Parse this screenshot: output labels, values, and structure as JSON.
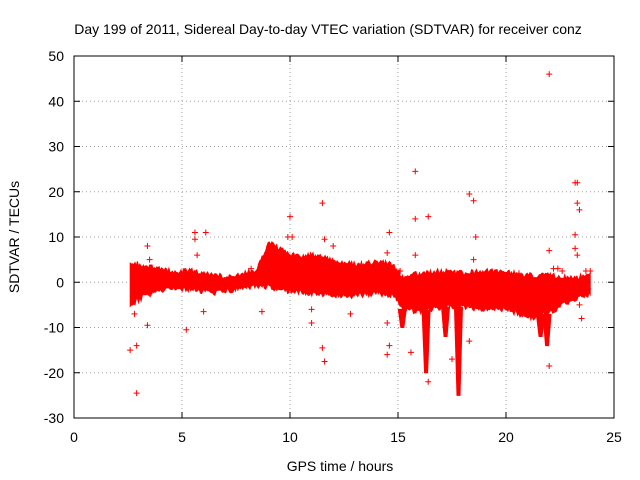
{
  "chart_data": {
    "type": "scatter",
    "title": "Day 199 of 2011, Sidereal Day-to-day VTEC variation (SDTVAR) for receiver conz",
    "xlabel": "GPS time / hours",
    "ylabel": "SDTVAR / TECUs",
    "xlim": [
      0,
      25
    ],
    "ylim": [
      -30,
      50
    ],
    "xticks": [
      0,
      5,
      10,
      15,
      20,
      25
    ],
    "yticks": [
      -30,
      -20,
      -10,
      0,
      10,
      20,
      30,
      40,
      50
    ],
    "xtick_labels": [
      "0",
      "5",
      "10",
      "15",
      "20",
      "25"
    ],
    "ytick_labels": [
      "-30",
      "-20",
      "-10",
      "0",
      "10",
      "20",
      "30",
      "40",
      "50"
    ],
    "grid": true,
    "marker": "+",
    "color": "#ff0000",
    "band": {
      "x": [
        2.6,
        3.5,
        4.5,
        5.5,
        6.5,
        7.5,
        8.5,
        9.0,
        10.0,
        11.0,
        12.0,
        13.0,
        14.0,
        14.8,
        15.2,
        16.0,
        17.0,
        18.0,
        19.0,
        20.0,
        21.0,
        22.0,
        23.0,
        23.9
      ],
      "low": [
        -5.0,
        -2.5,
        -1.5,
        -1.5,
        -2.5,
        -1.5,
        -1.0,
        -1.0,
        -2.0,
        -2.5,
        -3.0,
        -3.0,
        -2.5,
        -3.0,
        -6.0,
        -6.5,
        -5.5,
        -5.5,
        -6.0,
        -6.0,
        -8.0,
        -7.0,
        -4.0,
        -2.5
      ],
      "high": [
        4.5,
        3.5,
        2.5,
        2.5,
        1.5,
        1.5,
        3.0,
        9.0,
        6.0,
        6.0,
        5.0,
        4.0,
        4.5,
        4.0,
        1.0,
        2.0,
        2.5,
        2.0,
        2.5,
        2.5,
        1.5,
        1.5,
        1.0,
        1.5
      ]
    },
    "dips": [
      {
        "x": 15.2,
        "y": -10.0
      },
      {
        "x": 16.3,
        "y": -20.0
      },
      {
        "x": 17.2,
        "y": -12.0
      },
      {
        "x": 17.8,
        "y": -25.0
      },
      {
        "x": 21.6,
        "y": -12.0
      },
      {
        "x": 21.9,
        "y": -14.0
      }
    ],
    "outliers": [
      {
        "x": 2.6,
        "y": -15.0
      },
      {
        "x": 2.9,
        "y": -14.0
      },
      {
        "x": 2.9,
        "y": -24.5
      },
      {
        "x": 2.8,
        "y": -7.0
      },
      {
        "x": 3.4,
        "y": -9.5
      },
      {
        "x": 3.4,
        "y": 8.0
      },
      {
        "x": 3.5,
        "y": 5.0
      },
      {
        "x": 3.5,
        "y": -2.5
      },
      {
        "x": 5.2,
        "y": -10.5
      },
      {
        "x": 5.6,
        "y": 11.0
      },
      {
        "x": 5.6,
        "y": 9.5
      },
      {
        "x": 5.7,
        "y": 6.0
      },
      {
        "x": 6.1,
        "y": 11.0
      },
      {
        "x": 6.0,
        "y": -6.5
      },
      {
        "x": 8.2,
        "y": 3.0
      },
      {
        "x": 8.7,
        "y": -6.5
      },
      {
        "x": 10.0,
        "y": 14.5
      },
      {
        "x": 9.9,
        "y": 10.0
      },
      {
        "x": 10.1,
        "y": 10.0
      },
      {
        "x": 11.0,
        "y": -6.0
      },
      {
        "x": 11.0,
        "y": -9.0
      },
      {
        "x": 11.5,
        "y": 17.5
      },
      {
        "x": 11.5,
        "y": -14.5
      },
      {
        "x": 11.6,
        "y": -17.5
      },
      {
        "x": 11.6,
        "y": 9.5
      },
      {
        "x": 12.0,
        "y": 8.0
      },
      {
        "x": 12.8,
        "y": -7.0
      },
      {
        "x": 14.5,
        "y": 6.5
      },
      {
        "x": 14.5,
        "y": -16.0
      },
      {
        "x": 14.6,
        "y": -14.0
      },
      {
        "x": 14.6,
        "y": 11.0
      },
      {
        "x": 14.5,
        "y": -9.0
      },
      {
        "x": 15.1,
        "y": 2.5
      },
      {
        "x": 15.6,
        "y": -15.5
      },
      {
        "x": 15.8,
        "y": 24.5
      },
      {
        "x": 15.8,
        "y": 14.0
      },
      {
        "x": 15.8,
        "y": 6.0
      },
      {
        "x": 16.4,
        "y": 14.5
      },
      {
        "x": 16.4,
        "y": -22.0
      },
      {
        "x": 18.3,
        "y": 19.5
      },
      {
        "x": 18.5,
        "y": 18.0
      },
      {
        "x": 18.6,
        "y": 10.0
      },
      {
        "x": 18.5,
        "y": 5.0
      },
      {
        "x": 18.3,
        "y": -13.0
      },
      {
        "x": 17.5,
        "y": -17.0
      },
      {
        "x": 20.6,
        "y": 2.0
      },
      {
        "x": 22.0,
        "y": 46.0
      },
      {
        "x": 22.0,
        "y": 7.0
      },
      {
        "x": 22.0,
        "y": -18.5
      },
      {
        "x": 22.2,
        "y": 3.0
      },
      {
        "x": 22.4,
        "y": 3.0
      },
      {
        "x": 22.6,
        "y": 2.5
      },
      {
        "x": 23.2,
        "y": 22.0
      },
      {
        "x": 23.3,
        "y": 22.0
      },
      {
        "x": 23.3,
        "y": 17.5
      },
      {
        "x": 23.4,
        "y": 16.0
      },
      {
        "x": 23.2,
        "y": 10.5
      },
      {
        "x": 23.2,
        "y": 7.5
      },
      {
        "x": 23.3,
        "y": 6.0
      },
      {
        "x": 23.4,
        "y": -5.0
      },
      {
        "x": 23.5,
        "y": -8.0
      },
      {
        "x": 23.7,
        "y": 2.5
      },
      {
        "x": 23.9,
        "y": 2.5
      },
      {
        "x": 23.8,
        "y": -1.5
      }
    ]
  }
}
